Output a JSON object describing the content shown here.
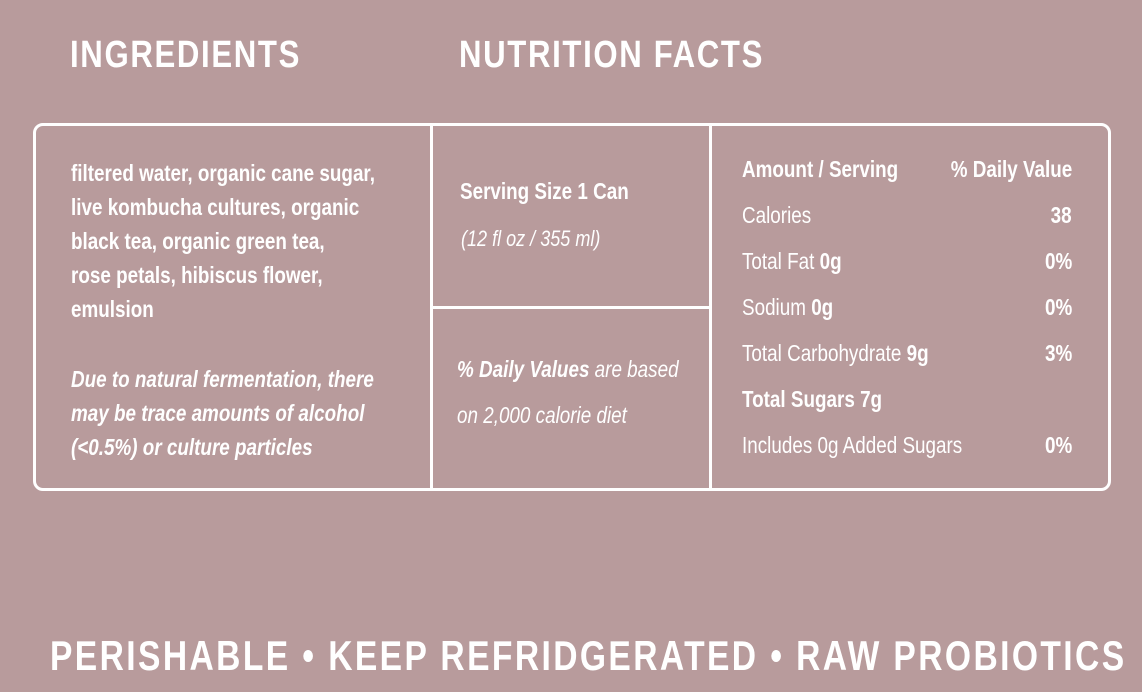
{
  "headings": {
    "ingredients": "INGREDIENTS",
    "nutrition": "NUTRITION FACTS"
  },
  "ingredients": {
    "lines": [
      "filtered water, organic cane sugar,",
      "live kombucha cultures, organic",
      "black tea, organic green tea,",
      "rose petals, hibiscus flower,",
      "emulsion"
    ],
    "note_lines": [
      "Due to natural fermentation, there",
      "may be trace amounts of alcohol",
      "(<0.5%) or culture particles"
    ]
  },
  "serving": {
    "title": "Serving Size 1 Can",
    "subtitle": "(12 fl oz / 355 ml)"
  },
  "daily_value_note": {
    "bold": "% Daily Values",
    "rest_line1": " are based",
    "line2": "on 2,000 calorie diet"
  },
  "nutrition": {
    "header_left": "Amount / Serving",
    "header_right": "% Daily Value",
    "rows": [
      {
        "label": "Calories",
        "amount": "",
        "value": "38"
      },
      {
        "label": "Total Fat ",
        "amount": "0g",
        "value": "0%"
      },
      {
        "label": "Sodium ",
        "amount": "0g",
        "value": "0%"
      },
      {
        "label": "Total Carbohydrate ",
        "amount": "9g",
        "value": "3%"
      },
      {
        "label": "Total Sugars 7g",
        "amount": "",
        "value": ""
      },
      {
        "label": "Includes 0g Added Sugars",
        "amount": "",
        "value": "0%"
      }
    ]
  },
  "footer": "PERISHABLE • KEEP REFRIDGERATED • RAW PROBIOTICS",
  "colors": {
    "background": "#b89b9c",
    "text": "#ffffff"
  }
}
